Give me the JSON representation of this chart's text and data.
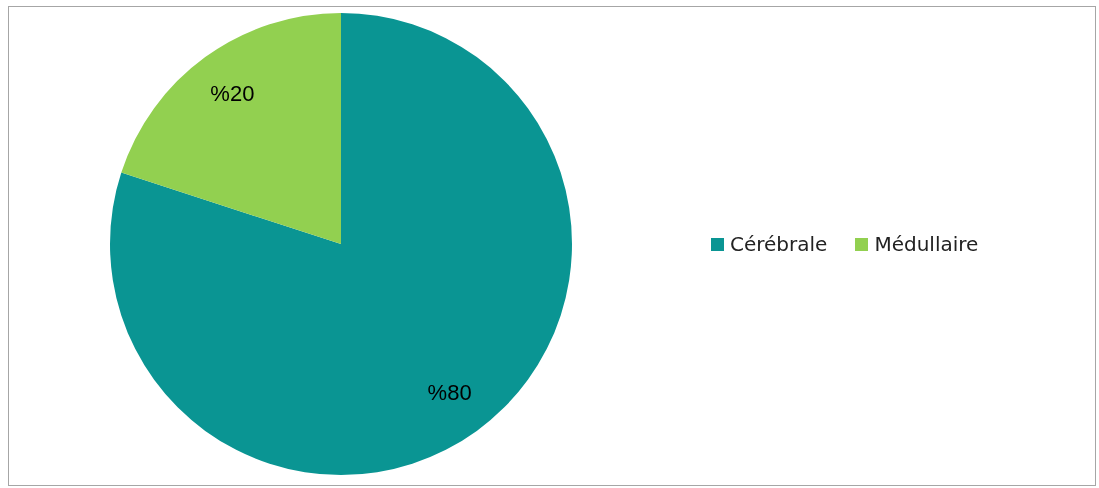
{
  "chart_data": {
    "type": "pie",
    "categories": [
      "Cérébrale",
      "Médullaire"
    ],
    "values": [
      80,
      20
    ],
    "colors": [
      "#0a9593",
      "#92d050"
    ],
    "value_labels": [
      "%80",
      "%20"
    ],
    "legend": "right"
  }
}
